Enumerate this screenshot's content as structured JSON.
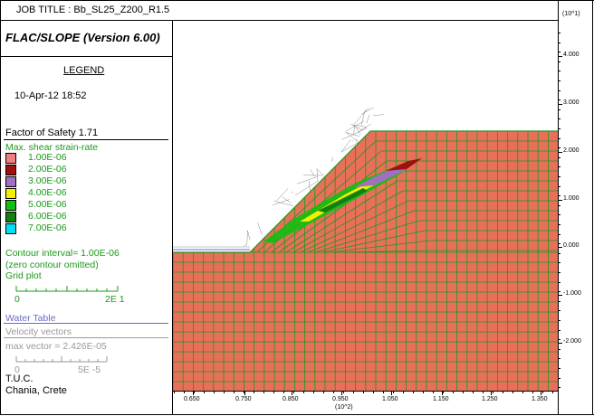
{
  "job_title": "JOB TITLE : Bb_SL25_Z200_R1.5",
  "program": "FLAC/SLOPE (Version 6.00)",
  "legend": {
    "heading": "LEGEND",
    "datetime": "10-Apr-12  18:52",
    "fos": "Factor of Safety  1.71",
    "contour_title": "Max. shear strain-rate",
    "contours": [
      {
        "value": "1.00E-06",
        "color": "#f08080"
      },
      {
        "value": "2.00E-06",
        "color": "#a01010"
      },
      {
        "value": "3.00E-06",
        "color": "#a070c0"
      },
      {
        "value": "4.00E-06",
        "color": "#f0f000"
      },
      {
        "value": "5.00E-06",
        "color": "#10c010"
      },
      {
        "value": "6.00E-06",
        "color": "#108010"
      },
      {
        "value": "7.00E-06",
        "color": "#00e0f0"
      }
    ],
    "contour_interval": "Contour interval= 1.00E-06",
    "zero_contour": "(zero contour omitted)",
    "grid_plot": "Grid plot",
    "grid_scale_left": "0",
    "grid_scale_right": "2E  1",
    "water_table": "Water Table",
    "velocity_vectors": "Velocity vectors",
    "max_vector": "max vector =     2.426E-05",
    "vector_scale_left": "0",
    "vector_scale_right": "5E -5",
    "org1": "T.U.C.",
    "org2": "Chania, Crete"
  },
  "axes": {
    "y_multiplier": "(10^1)",
    "x_multiplier": "(10^2)",
    "y_ticks": [
      "4.000",
      "3.000",
      "2.000",
      "1.000",
      "0.000",
      "-1.000",
      "-2.000"
    ],
    "x_ticks": [
      "0.650",
      "0.750",
      "0.850",
      "0.950",
      "1.050",
      "1.150",
      "1.250",
      "1.350"
    ]
  },
  "colors": {
    "soil": "#e8705a",
    "grid": "#1a9a1a",
    "water": "#6a6acc",
    "wireframe": "#888888"
  }
}
